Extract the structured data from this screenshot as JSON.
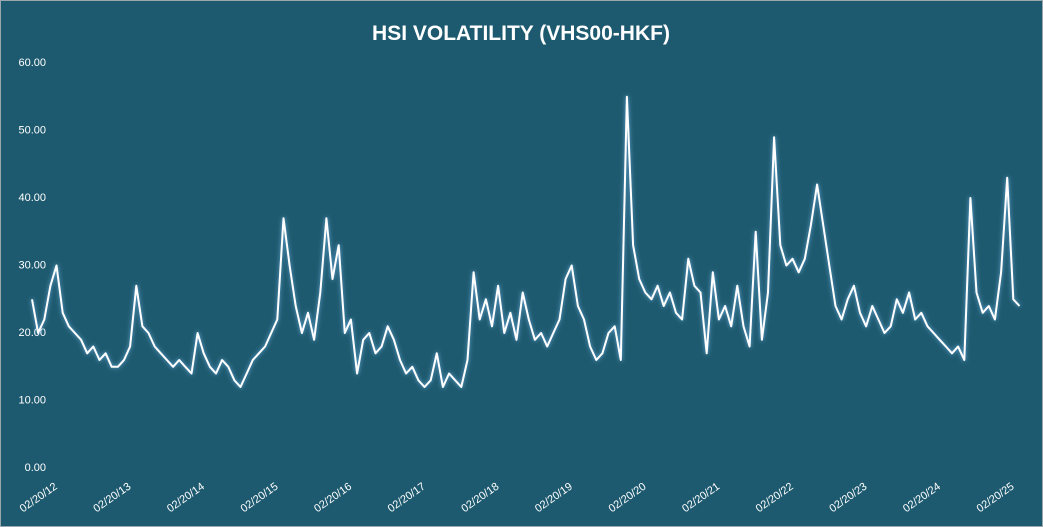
{
  "chart_data": {
    "type": "line",
    "title": "HSI VOLATILITY (VHS00-HKF)",
    "categories": [
      "02/20/12",
      null,
      null,
      null,
      null,
      null,
      null,
      null,
      null,
      null,
      null,
      null,
      "02/20/13",
      null,
      null,
      null,
      null,
      null,
      null,
      null,
      null,
      null,
      null,
      null,
      "02/20/14",
      null,
      null,
      null,
      null,
      null,
      null,
      null,
      null,
      null,
      null,
      null,
      "02/20/15",
      null,
      null,
      null,
      null,
      null,
      null,
      null,
      null,
      null,
      null,
      null,
      "02/20/16",
      null,
      null,
      null,
      null,
      null,
      null,
      null,
      null,
      null,
      null,
      null,
      "02/20/17",
      null,
      null,
      null,
      null,
      null,
      null,
      null,
      null,
      null,
      null,
      null,
      "02/20/18",
      null,
      null,
      null,
      null,
      null,
      null,
      null,
      null,
      null,
      null,
      null,
      "02/20/19",
      null,
      null,
      null,
      null,
      null,
      null,
      null,
      null,
      null,
      null,
      null,
      "02/20/20",
      null,
      null,
      null,
      null,
      null,
      null,
      null,
      null,
      null,
      null,
      null,
      "02/20/21",
      null,
      null,
      null,
      null,
      null,
      null,
      null,
      null,
      null,
      null,
      null,
      "02/20/22",
      null,
      null,
      null,
      null,
      null,
      null,
      null,
      null,
      null,
      null,
      null,
      "02/20/23",
      null,
      null,
      null,
      null,
      null,
      null,
      null,
      null,
      null,
      null,
      null,
      "02/20/24",
      null,
      null,
      null,
      null,
      null,
      null,
      null,
      null,
      null,
      null,
      null,
      "02/20/25",
      null,
      null,
      null,
      null,
      null
    ],
    "series": [
      {
        "color": "#ffffff",
        "values": [
          25,
          20,
          22,
          27,
          30,
          23,
          21,
          20,
          19,
          17,
          18,
          16,
          17,
          15,
          15,
          16,
          18,
          27,
          21,
          20,
          18,
          17,
          16,
          15,
          16,
          15,
          14,
          20,
          17,
          15,
          14,
          16,
          15,
          13,
          12,
          14,
          16,
          17,
          18,
          20,
          22,
          37,
          30,
          24,
          20,
          23,
          19,
          26,
          37,
          28,
          33,
          20,
          22,
          14,
          19,
          20,
          17,
          18,
          21,
          19,
          16,
          14,
          15,
          13,
          12,
          13,
          17,
          12,
          14,
          13,
          12,
          16,
          29,
          22,
          25,
          21,
          27,
          20,
          23,
          19,
          26,
          22,
          19,
          20,
          18,
          20,
          22,
          28,
          30,
          24,
          22,
          18,
          16,
          17,
          20,
          21,
          16,
          55,
          33,
          28,
          26,
          25,
          27,
          24,
          26,
          23,
          22,
          31,
          27,
          26,
          17,
          29,
          22,
          24,
          21,
          27,
          21,
          18,
          35,
          19,
          26,
          49,
          33,
          30,
          31,
          29,
          31,
          36,
          42,
          36,
          30,
          24,
          22,
          25,
          27,
          23,
          21,
          24,
          22,
          20,
          21,
          25,
          23,
          26,
          22,
          23,
          21,
          20,
          19,
          18,
          17,
          18,
          16,
          40,
          26,
          23,
          24,
          22,
          29,
          43,
          25,
          24
        ]
      }
    ],
    "ylim": [
      0,
      60
    ],
    "yticks": [
      {
        "value": 0,
        "label": "0.00"
      },
      {
        "value": 10,
        "label": "10.00"
      },
      {
        "value": 20,
        "label": "20.00"
      },
      {
        "value": 30,
        "label": "30.00"
      },
      {
        "value": 40,
        "label": "40.00"
      },
      {
        "value": 50,
        "label": "50.00"
      },
      {
        "value": 60,
        "label": "60.00"
      }
    ],
    "grid": false,
    "background": "#1e5a6f"
  }
}
